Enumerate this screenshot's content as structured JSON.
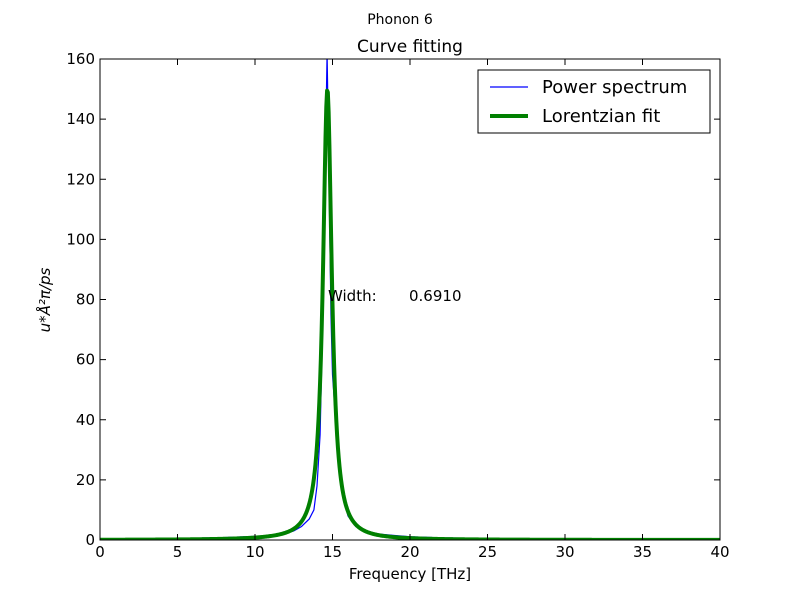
{
  "chart_data": {
    "type": "line",
    "suptitle": "Phonon 6",
    "title": "Curve fitting",
    "xlabel": "Frequency [THz]",
    "ylabel": "u*Å²π/ps",
    "xlim": [
      0,
      40
    ],
    "ylim": [
      0,
      160
    ],
    "xticks": [
      0,
      5,
      10,
      15,
      20,
      25,
      30,
      35,
      40
    ],
    "yticks": [
      0,
      20,
      40,
      60,
      80,
      100,
      120,
      140,
      160
    ],
    "grid": false,
    "legend_position": "top-right",
    "annotation": {
      "label": "Width:",
      "value": "0.6910",
      "x": 14.7,
      "y": 80
    },
    "series": [
      {
        "name": "Power spectrum",
        "color": "#0000ff",
        "points": [
          [
            0,
            0.4
          ],
          [
            2,
            0.4
          ],
          [
            4,
            0.5
          ],
          [
            6,
            0.6
          ],
          [
            8,
            0.8
          ],
          [
            10,
            1.2
          ],
          [
            11,
            1.5
          ],
          [
            12,
            2.2
          ],
          [
            12.5,
            3.0
          ],
          [
            13,
            4.5
          ],
          [
            13.5,
            7
          ],
          [
            13.8,
            10
          ],
          [
            14.0,
            18
          ],
          [
            14.2,
            35
          ],
          [
            14.4,
            80
          ],
          [
            14.55,
            130
          ],
          [
            14.65,
            162
          ],
          [
            14.75,
            130
          ],
          [
            14.9,
            75
          ],
          [
            15.0,
            55
          ],
          [
            15.2,
            40
          ],
          [
            15.4,
            28
          ],
          [
            15.6,
            18
          ],
          [
            15.8,
            12
          ],
          [
            16.0,
            8
          ],
          [
            16.5,
            4.5
          ],
          [
            17,
            3
          ],
          [
            18,
            2
          ],
          [
            19,
            1.5
          ],
          [
            20,
            1.1
          ],
          [
            22,
            0.7
          ],
          [
            25,
            0.5
          ],
          [
            30,
            0.3
          ],
          [
            35,
            0.2
          ],
          [
            40,
            0.1
          ]
        ]
      },
      {
        "name": "Lorentzian fit",
        "color": "#008000",
        "fit": {
          "x0": 14.67,
          "gamma": 0.691,
          "amplitude": 150,
          "baseline": 0.0
        }
      }
    ]
  }
}
